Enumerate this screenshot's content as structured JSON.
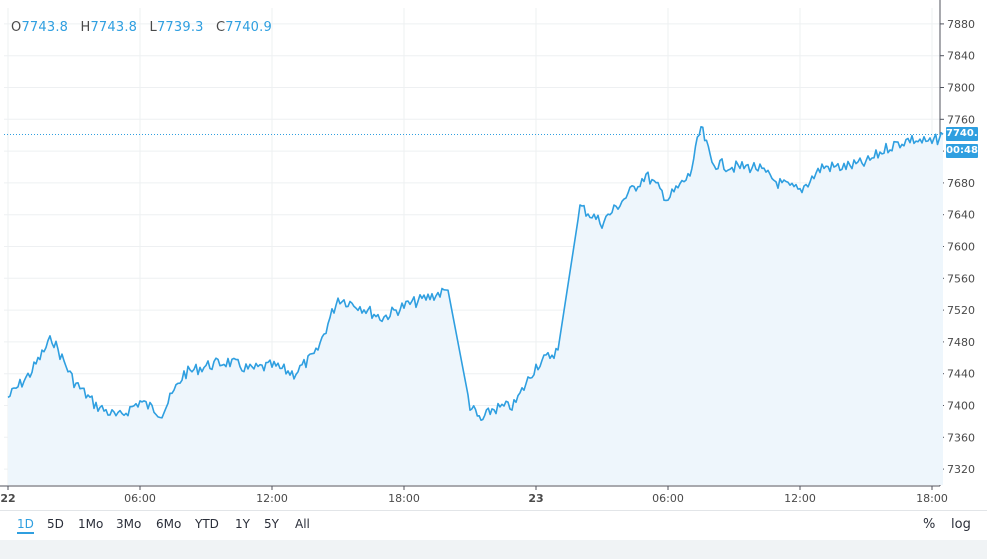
{
  "ohlc": {
    "o_label": "O",
    "o_value": "7743.8",
    "h_label": "H",
    "h_value": "7743.8",
    "l_label": "L",
    "l_value": "7739.3",
    "c_label": "C",
    "c_value": "7740.9"
  },
  "price_label": "7740.9",
  "countdown_label": "00:48",
  "ranges": [
    {
      "label": "1D",
      "active": true
    },
    {
      "label": "5D",
      "active": false
    },
    {
      "label": "1Mo",
      "active": false
    },
    {
      "label": "3Mo",
      "active": false
    },
    {
      "label": "6Mo",
      "active": false
    },
    {
      "label": "YTD",
      "active": false
    },
    {
      "label": "1Y",
      "active": false
    },
    {
      "label": "5Y",
      "active": false
    },
    {
      "label": "All",
      "active": false
    }
  ],
  "right_controls": {
    "percent": "%",
    "log": "log"
  },
  "colors": {
    "line": "#2f9fe0",
    "fill": "#eef6fc",
    "grid": "#eef0f2",
    "axis_text": "#4a4a4a"
  },
  "chart_data": {
    "type": "area",
    "title": "",
    "xlabel": "",
    "ylabel": "",
    "ylim": [
      7300,
      7900
    ],
    "y_ticks": [
      7320,
      7360,
      7400,
      7440,
      7480,
      7520,
      7560,
      7600,
      7640,
      7680,
      7720,
      7760,
      7800,
      7840,
      7880
    ],
    "x_ticks": [
      "22",
      "06:00",
      "12:00",
      "18:00",
      "23",
      "06:00",
      "12:00",
      "18:00"
    ],
    "last_price": 7740.9,
    "series": [
      {
        "x": [
          "22 00:00",
          "22 01:00",
          "22 02:00",
          "22 03:00",
          "22 04:00",
          "22 05:00",
          "22 06:00",
          "22 07:00",
          "22 08:00",
          "22 09:00",
          "22 10:00",
          "22 11:00",
          "22 12:00",
          "22 13:00",
          "22 14:00",
          "22 15:00",
          "22 16:00",
          "22 17:00",
          "22 18:00",
          "22 19:00",
          "22 20:00",
          "22 21:00",
          "22 21:30",
          "22 22:00",
          "22 23:00",
          "23 00:00",
          "23 01:00",
          "23 02:00",
          "23 03:00",
          "23 04:00",
          "23 05:00",
          "23 06:00",
          "23 07:00",
          "23 07:30",
          "23 08:00",
          "23 09:00",
          "23 10:00",
          "23 11:00",
          "23 12:00",
          "23 13:00",
          "23 14:00",
          "23 15:00",
          "23 16:00",
          "23 17:00",
          "23 18:00",
          "23 18:30"
        ],
        "values": [
          7410,
          7440,
          7485,
          7430,
          7400,
          7385,
          7405,
          7390,
          7440,
          7450,
          7455,
          7445,
          7450,
          7440,
          7465,
          7535,
          7525,
          7510,
          7525,
          7535,
          7545,
          7400,
          7380,
          7395,
          7400,
          7450,
          7470,
          7650,
          7630,
          7660,
          7690,
          7660,
          7690,
          7750,
          7705,
          7700,
          7700,
          7680,
          7670,
          7700,
          7700,
          7705,
          7725,
          7735,
          7730,
          7741
        ]
      }
    ]
  }
}
